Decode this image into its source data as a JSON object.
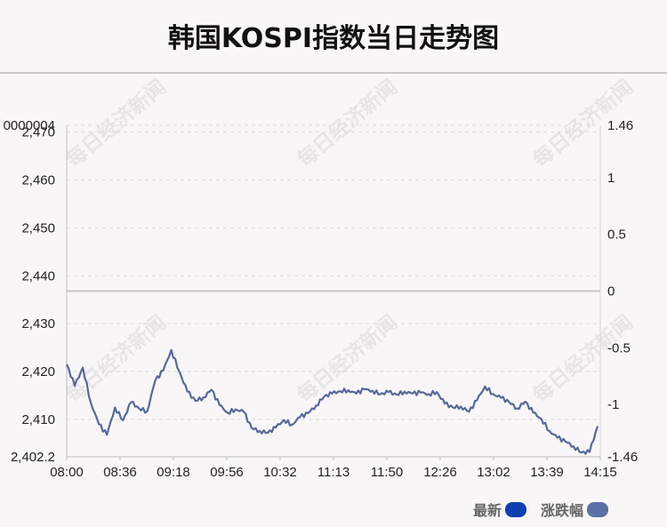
{
  "title": "韩国KOSPI指数当日走势图",
  "watermark_text": "每日经济新闻",
  "legend": [
    {
      "label": "最新",
      "color": "#0d3fb2"
    },
    {
      "label": "涨跌幅",
      "color": "#5a71a6"
    }
  ],
  "colors": {
    "line": "#56699c",
    "zero_line": "#c8c8c8",
    "grid": "#dcdcdc",
    "axis_text": "#222222"
  },
  "chart_data": {
    "type": "line",
    "title": "韩国KOSPI指数当日走势图",
    "xlabel": "",
    "ylabel": "",
    "x_ticks": [
      "08:00",
      "08:36",
      "09:18",
      "09:56",
      "10:32",
      "11:13",
      "11:50",
      "12:26",
      "13:02",
      "13:39",
      "14:15"
    ],
    "y_left_ticks": [
      "2,402.2",
      "2,410",
      "2,420",
      "2,430",
      "2,440",
      "2,450",
      "2,460",
      "2,470",
      "0000004"
    ],
    "y_left_range": [
      2402.2,
      2471.4
    ],
    "y_right_ticks": [
      "-1.46",
      "-1",
      "-0.5",
      "0",
      "0.5",
      "1",
      "1.46"
    ],
    "y_right_range": [
      -1.46,
      1.46
    ],
    "grid": true,
    "legend_position": "bottom-right",
    "series": [
      {
        "name": "最新",
        "x_start": "08:00",
        "x_end": "14:15",
        "values": [
          2421.5,
          2417.0,
          2420.8,
          2413.5,
          2409.0,
          2406.8,
          2412.5,
          2409.8,
          2413.6,
          2412.3,
          2411.7,
          2418.1,
          2420.2,
          2424.5,
          2420.0,
          2415.8,
          2413.9,
          2414.6,
          2416.2,
          2413.0,
          2411.4,
          2412.1,
          2411.6,
          2408.2,
          2407.6,
          2407.2,
          2408.3,
          2409.9,
          2408.9,
          2410.5,
          2411.3,
          2412.9,
          2414.8,
          2415.4,
          2415.9,
          2416.1,
          2415.4,
          2416.3,
          2416.0,
          2415.3,
          2415.7,
          2415.2,
          2415.8,
          2415.4,
          2415.6,
          2415.3,
          2415.7,
          2413.3,
          2412.5,
          2412.7,
          2411.6,
          2414.0,
          2416.9,
          2415.3,
          2414.5,
          2413.6,
          2412.3,
          2413.7,
          2411.4,
          2410.1,
          2407.6,
          2406.2,
          2405.4,
          2404.4,
          2403.1,
          2403.2,
          2408.6
        ]
      }
    ]
  }
}
